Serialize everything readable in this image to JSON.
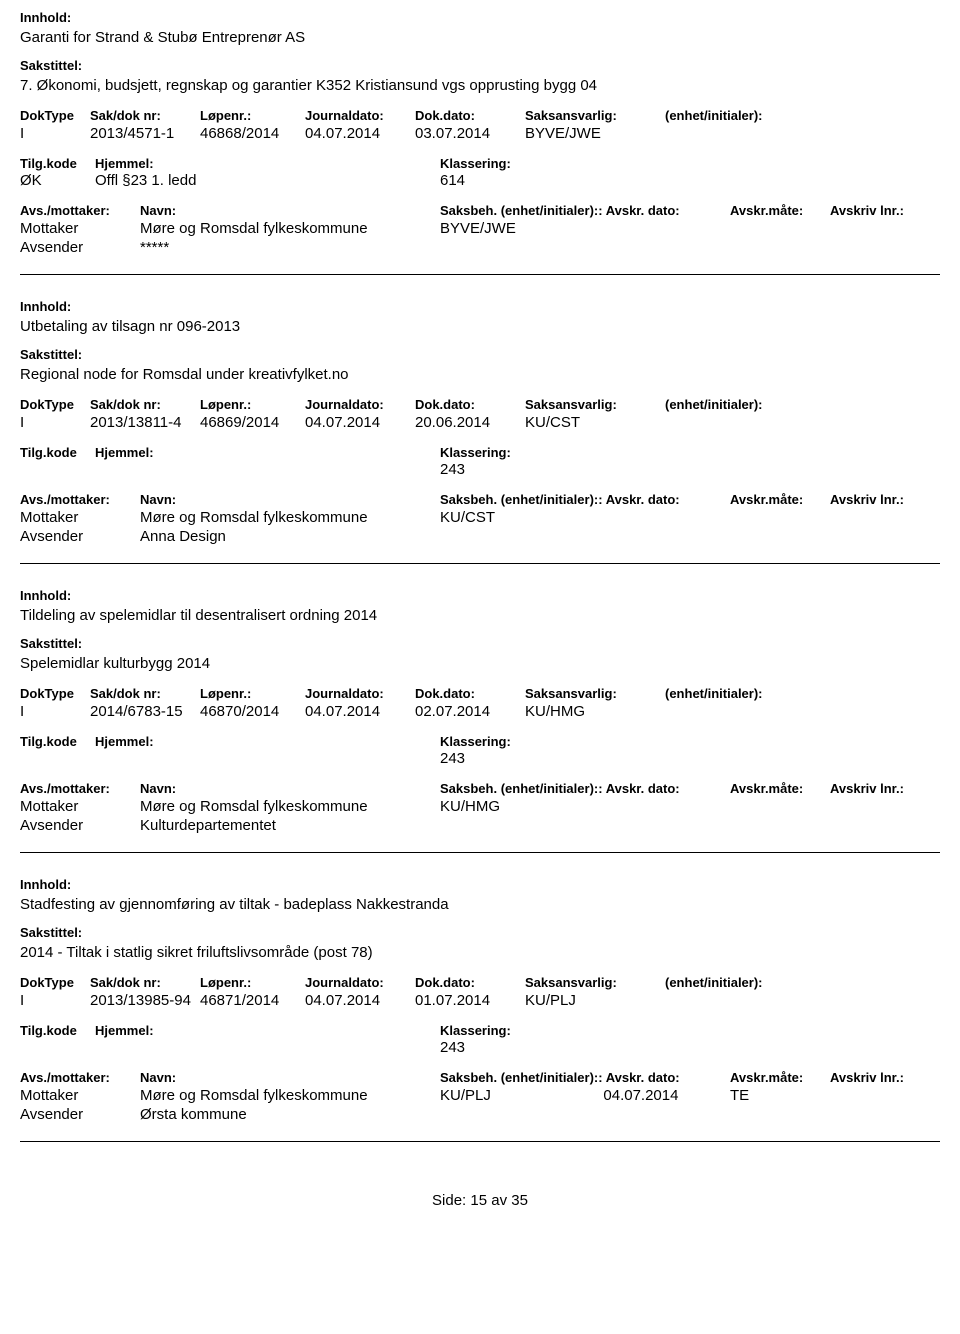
{
  "labels": {
    "innhold": "Innhold:",
    "sakstittel": "Sakstittel:",
    "doktype": "DokType",
    "sakdok": "Sak/dok nr:",
    "lopenr": "Løpenr.:",
    "journaldato": "Journaldato:",
    "dokdato": "Dok.dato:",
    "saksansvarlig": "Saksansvarlig:",
    "enhetinit": "(enhet/initialer):",
    "tilgkode": "Tilg.kode",
    "hjemmel": "Hjemmel:",
    "klassering": "Klassering:",
    "avsmottaker": "Avs./mottaker:",
    "navn": "Navn:",
    "saksbeh": "Saksbeh.",
    "avskrdato": "Avskr. dato:",
    "avskrmaate": "Avskr.måte:",
    "avskrivlnr": "Avskriv lnr.:",
    "mottaker": "Mottaker",
    "avsender": "Avsender",
    "side": "Side:",
    "av": "av"
  },
  "page": {
    "current": "15",
    "total": "35"
  },
  "entries": [
    {
      "innhold": "Garanti for Strand & Stubø Entreprenør AS",
      "sakstittel": "7. Økonomi, budsjett, regnskap og garantier K352 Kristiansund vgs opprusting bygg 04",
      "doktype": "I",
      "sakdok": "2013/4571-1",
      "lopenr": "46868/2014",
      "journaldato": "04.07.2014",
      "dokdato": "03.07.2014",
      "saksansvarlig": "BYVE/JWE",
      "tilgkode": "ØK",
      "hjemmel": "Offl §23 1. ledd",
      "klassering": "614",
      "mottaker": "Møre og Romsdal fylkeskommune",
      "saksbeh": "BYVE/JWE",
      "avsender": "*****",
      "avskrdato": "",
      "avskrmaate": ""
    },
    {
      "innhold": "Utbetaling av tilsagn nr 096-2013",
      "sakstittel": "Regional node for Romsdal under kreativfylket.no",
      "doktype": "I",
      "sakdok": "2013/13811-4",
      "lopenr": "46869/2014",
      "journaldato": "04.07.2014",
      "dokdato": "20.06.2014",
      "saksansvarlig": "KU/CST",
      "tilgkode": "",
      "hjemmel": "",
      "klassering": "243",
      "mottaker": "Møre og Romsdal fylkeskommune",
      "saksbeh": "KU/CST",
      "avsender": "Anna Design",
      "avskrdato": "",
      "avskrmaate": ""
    },
    {
      "innhold": "Tildeling av spelemidlar til desentralisert ordning 2014",
      "sakstittel": "Spelemidlar kulturbygg 2014",
      "doktype": "I",
      "sakdok": "2014/6783-15",
      "lopenr": "46870/2014",
      "journaldato": "04.07.2014",
      "dokdato": "02.07.2014",
      "saksansvarlig": "KU/HMG",
      "tilgkode": "",
      "hjemmel": "",
      "klassering": "243",
      "mottaker": "Møre og Romsdal fylkeskommune",
      "saksbeh": "KU/HMG",
      "avsender": "Kulturdepartementet",
      "avskrdato": "",
      "avskrmaate": ""
    },
    {
      "innhold": "Stadfesting av gjennomføring av tiltak - badeplass Nakkestranda",
      "sakstittel": "2014 - Tiltak i statlig sikret friluftslivsområde (post 78)",
      "doktype": "I",
      "sakdok": "2013/13985-94",
      "lopenr": "46871/2014",
      "journaldato": "04.07.2014",
      "dokdato": "01.07.2014",
      "saksansvarlig": "KU/PLJ",
      "tilgkode": "",
      "hjemmel": "",
      "klassering": "243",
      "mottaker": "Møre og Romsdal fylkeskommune",
      "saksbeh": "KU/PLJ",
      "avsender": "Ørsta kommune",
      "avskrdato": "04.07.2014",
      "avskrmaate": "TE"
    }
  ]
}
